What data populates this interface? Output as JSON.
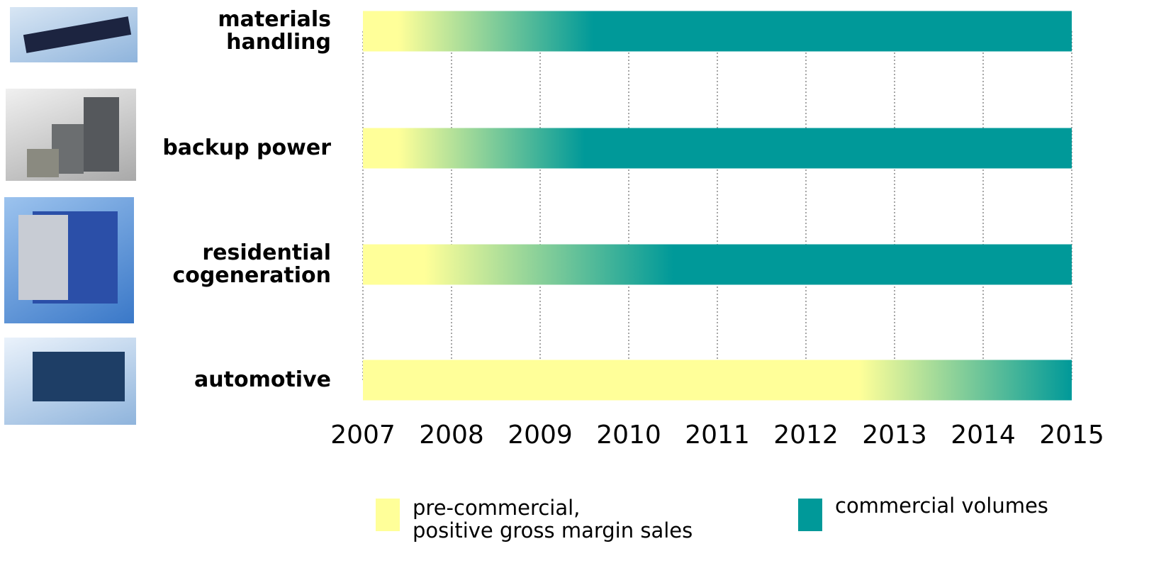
{
  "chart_data": {
    "type": "timeline",
    "categories": [
      "materials\nhandling",
      "backup power",
      "residential\ncogeneration",
      "automotive"
    ],
    "series": [
      {
        "name": "pre-commercial,\npositive gross margin sales",
        "color": "#ffff99",
        "values": [
          2007.4,
          2007.4,
          2007.7,
          2012.6
        ]
      },
      {
        "name": "commercial volumes",
        "color": "#009999",
        "values": [
          2009.6,
          2009.5,
          2010.5,
          2015
        ]
      }
    ],
    "xlim": [
      2007,
      2015
    ],
    "xticks": [
      2007,
      2008,
      2009,
      2010,
      2011,
      2012,
      2013,
      2014,
      2015
    ],
    "grid": true
  }
}
